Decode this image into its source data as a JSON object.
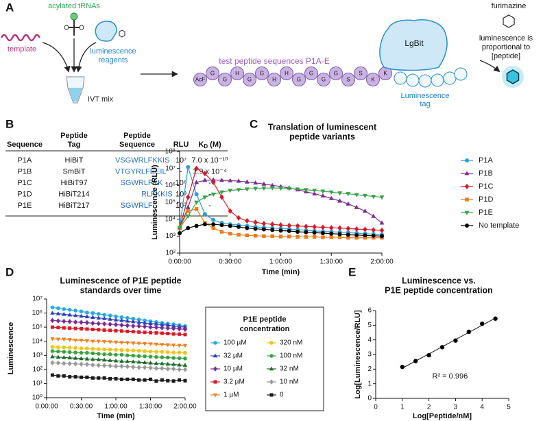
{
  "panel_a": {
    "label": "A",
    "trna_label": "acylated tRNAs",
    "template_label": "template",
    "reagents_label": [
      "luminescence",
      "reagents"
    ],
    "ivt_label": "IVT mix",
    "peptide_label": "test peptide sequences P1A-E",
    "beads": [
      "AcF",
      "G",
      "G",
      "H",
      "G",
      "G",
      "H",
      "H",
      "G",
      "G",
      "G",
      "G",
      "S",
      "S",
      "K",
      "K"
    ],
    "lgbit_label": "LgBit",
    "tag_label": [
      "Luminescence",
      "tag"
    ],
    "substrate_label": "furimazine",
    "readout_label": [
      "luminescence is",
      "proportional to",
      "[peptide]"
    ]
  },
  "panel_b": {
    "label": "B",
    "table": {
      "headers": [
        "Sequence",
        [
          "Peptide",
          "Tag"
        ],
        [
          "Peptide",
          "Sequence"
        ],
        "RLU",
        {
          "text": "K",
          "subscript": "D",
          "suffix": " (M)"
        }
      ],
      "rows": [
        [
          "P1A",
          "HiBiT",
          "VSGWRLFKKIS",
          "10⁷",
          "7.0 x 10⁻¹⁰"
        ],
        [
          "P1B",
          "SmBiT",
          "VTGYRLFEEIL",
          "-",
          "1.9 x 10⁻⁴"
        ],
        [
          "P1C",
          "HiBiT97",
          "SGWRLFKK",
          "10⁶",
          "-"
        ],
        [
          "P1D",
          "HiBiT214",
          "RLFKKIS",
          "10³",
          "-"
        ],
        [
          "P1E",
          "HiBiT217",
          "SGWRLF",
          "10³",
          "-"
        ]
      ]
    }
  },
  "chart_data": [
    {
      "panel_label": "C",
      "type": "line",
      "title": [
        "Translation of luminescent",
        "peptide variants"
      ],
      "x_label": "Time (min)",
      "y_label": "Luminescence (RLU)",
      "yscale": "log",
      "xlim": [
        0,
        120
      ],
      "xticks": [
        {
          "value": 0,
          "label": "0:00:00"
        },
        {
          "value": 30,
          "label": "0:30:00"
        },
        {
          "value": 60,
          "label": "1:00:00"
        },
        {
          "value": 90,
          "label": "1:30:00"
        },
        {
          "value": 120,
          "label": "2:00:00"
        }
      ],
      "ylim": [
        100,
        100000000
      ],
      "yticks": [
        {
          "value": 100,
          "label": "10²"
        },
        {
          "value": 1000,
          "label": "10³"
        },
        {
          "value": 10000,
          "label": "10⁴"
        },
        {
          "value": 100000,
          "label": "10⁵"
        },
        {
          "value": 1000000,
          "label": "10⁶"
        },
        {
          "value": 10000000,
          "label": "10⁷"
        },
        {
          "value": 100000000,
          "label": "10⁸"
        }
      ],
      "x": [
        0,
        5,
        10,
        15,
        20,
        25,
        30,
        35,
        40,
        45,
        50,
        55,
        60,
        65,
        70,
        75,
        80,
        85,
        90,
        95,
        100,
        105,
        110,
        115,
        120
      ],
      "series": [
        {
          "name": "P1A",
          "color": "#2a9fd8",
          "marker": "circle",
          "values": [
            3000,
            12000000,
            300000,
            20000,
            9000,
            6000,
            5000,
            4500,
            4000,
            3500,
            3200,
            3000,
            2800,
            2600,
            2400,
            2200,
            2000,
            1900,
            1800,
            1700,
            1600,
            1500,
            1400,
            1300,
            1200
          ]
        },
        {
          "name": "P1B",
          "color": "#7b2d8e",
          "marker": "triangle",
          "values": [
            3000,
            50000,
            1500000,
            2000000,
            2100000,
            2000000,
            1900000,
            1800000,
            1600000,
            1400000,
            1200000,
            1000000,
            850000,
            700000,
            550000,
            420000,
            320000,
            240000,
            170000,
            120000,
            80000,
            50000,
            30000,
            15000,
            6000
          ]
        },
        {
          "name": "P1C",
          "color": "#d7192a",
          "marker": "diamond",
          "values": [
            3000,
            200000,
            10000000,
            5000000,
            1500000,
            200000,
            30000,
            12000,
            8000,
            6500,
            5500,
            5000,
            4500,
            4200,
            4000,
            3700,
            3500,
            3300,
            3100,
            3000,
            2800,
            2600,
            2500,
            2300,
            2200
          ]
        },
        {
          "name": "P1D",
          "color": "#f07a18",
          "marker": "square",
          "values": [
            3000,
            30000,
            40000,
            6000,
            3000,
            1800,
            1400,
            1200,
            1100,
            1050,
            1000,
            1000,
            950,
            950,
            900,
            900,
            900,
            850,
            850,
            850,
            800,
            800,
            800,
            800,
            800
          ]
        },
        {
          "name": "P1E",
          "color": "#3aa04a",
          "marker": "triangle-down",
          "values": [
            3000,
            15000,
            100000,
            200000,
            300000,
            400000,
            500000,
            550000,
            600000,
            650000,
            680000,
            700000,
            680000,
            650000,
            600000,
            550000,
            500000,
            450000,
            400000,
            350000,
            320000,
            280000,
            250000,
            220000,
            200000
          ]
        },
        {
          "name": "No template",
          "color": "#000000",
          "marker": "circle",
          "values": [
            1500,
            3000,
            4000,
            5000,
            5000,
            4500,
            4000,
            3500,
            3000,
            2700,
            2500,
            2300,
            2100,
            2000,
            1800,
            1700,
            1600,
            1500,
            1400,
            1300,
            1200,
            1150,
            1100,
            1050,
            1000
          ]
        }
      ]
    },
    {
      "panel_label": "D",
      "type": "line",
      "title": [
        "Luminescence of P1E peptide",
        "standards over time"
      ],
      "x_label": "Time (min)",
      "y_label": "Luminescence",
      "yscale": "log",
      "legend_title": [
        "P1E peptide",
        "concentration"
      ],
      "xlim": [
        0,
        120
      ],
      "xticks": [
        {
          "value": 0,
          "label": "0:00:00"
        },
        {
          "value": 30,
          "label": "0:30:00"
        },
        {
          "value": 60,
          "label": "1:00:00"
        },
        {
          "value": 90,
          "label": "1:30:00"
        },
        {
          "value": 120,
          "label": "2:00:00"
        }
      ],
      "ylim": [
        1,
        10000000
      ],
      "yticks": [
        {
          "value": 1,
          "label": "10⁰"
        },
        {
          "value": 10,
          "label": "10¹"
        },
        {
          "value": 100,
          "label": "10²"
        },
        {
          "value": 1000,
          "label": "10³"
        },
        {
          "value": 10000,
          "label": "10⁴"
        },
        {
          "value": 100000,
          "label": "10⁵"
        },
        {
          "value": 1000000,
          "label": "10⁶"
        },
        {
          "value": 10000000,
          "label": "10⁷"
        }
      ],
      "x": [
        5,
        10,
        15,
        20,
        25,
        30,
        35,
        40,
        45,
        50,
        55,
        60,
        65,
        70,
        75,
        80,
        85,
        90,
        95,
        100,
        105,
        110,
        115,
        120
      ],
      "series": [
        {
          "name": "100 µM",
          "color": "#29a9e1",
          "marker": "circle",
          "values": [
            2500000,
            2200000,
            1900000,
            1700000,
            1500000,
            1300000,
            1100000,
            990000,
            870000,
            760000,
            670000,
            580000,
            510000,
            450000,
            390000,
            350000,
            300000,
            260000,
            230000,
            200000,
            180000,
            160000,
            140000,
            120000
          ]
        },
        {
          "name": "32 µM",
          "color": "#2b3fbd",
          "marker": "triangle",
          "values": [
            1000000,
            900000,
            820000,
            740000,
            670000,
            610000,
            550000,
            500000,
            450000,
            410000,
            370000,
            330000,
            300000,
            270000,
            250000,
            220000,
            200000,
            180000,
            170000,
            150000,
            140000,
            120000,
            110000,
            100000
          ]
        },
        {
          "name": "10 µM",
          "color": "#7a2a94",
          "marker": "diamond",
          "values": [
            300000,
            280000,
            260000,
            250000,
            230000,
            220000,
            210000,
            190000,
            180000,
            170000,
            160000,
            150000,
            140000,
            130000,
            120000,
            120000,
            110000,
            100000,
            96000,
            90000,
            85000,
            80000,
            75000,
            70000
          ]
        },
        {
          "name": "3.2 µM",
          "color": "#d91a28",
          "marker": "square",
          "values": [
            100000,
            95000,
            90000,
            85000,
            81000,
            77000,
            73000,
            69000,
            66000,
            62000,
            59000,
            56000,
            53000,
            50000,
            48000,
            45000,
            43000,
            41000,
            39000,
            37000,
            35000,
            33000,
            32000,
            30000
          ]
        },
        {
          "name": "1 µM",
          "color": "#f57f20",
          "marker": "triangle-down",
          "values": [
            15000,
            14000,
            14000,
            13000,
            12000,
            12000,
            11000,
            10000,
            10000,
            9500,
            9100,
            8700,
            8200,
            7900,
            7500,
            7100,
            6800,
            6500,
            6200,
            5900,
            5600,
            5300,
            5100,
            5000
          ]
        },
        {
          "name": "320 nM",
          "color": "#f5c218",
          "marker": "circle",
          "values": [
            4000,
            3800,
            3700,
            3500,
            3400,
            3200,
            3100,
            2900,
            2800,
            2700,
            2600,
            2500,
            2400,
            2300,
            2200,
            2100,
            2000,
            1900,
            1800,
            1800,
            1700,
            1600,
            1600,
            1500
          ]
        },
        {
          "name": "100 nM",
          "color": "#3aa33f",
          "marker": "circle",
          "values": [
            2000,
            1900,
            1800,
            1700,
            1600,
            1500,
            1500,
            1400,
            1300,
            1200,
            1200,
            1100,
            1100,
            1000,
            950,
            900,
            860,
            810,
            770,
            730,
            700,
            660,
            630,
            600
          ]
        },
        {
          "name": "32 nM",
          "color": "#1f6b2a",
          "marker": "triangle",
          "values": [
            800,
            750,
            710,
            670,
            630,
            590,
            560,
            530,
            500,
            470,
            440,
            410,
            390,
            370,
            350,
            330,
            310,
            290,
            270,
            260,
            240,
            230,
            210,
            200
          ]
        },
        {
          "name": "10 nM",
          "color": "#999999",
          "marker": "diamond",
          "values": [
            300,
            290,
            270,
            260,
            250,
            240,
            230,
            210,
            200,
            190,
            180,
            170,
            170,
            160,
            150,
            140,
            140,
            130,
            120,
            120,
            110,
            110,
            100,
            100
          ]
        },
        {
          "name": "0",
          "color": "#1a1a1a",
          "marker": "square",
          "values": [
            40,
            35,
            35,
            30,
            30,
            28,
            28,
            25,
            25,
            25,
            22,
            22,
            20,
            20,
            20,
            18,
            18,
            20,
            15,
            18,
            16,
            15,
            18,
            16
          ]
        }
      ]
    },
    {
      "panel_label": "E",
      "type": "scatter",
      "title": [
        "Luminescence vs.",
        "P1E peptide concentration"
      ],
      "x_label": "Log[Peptide/nM]",
      "y_label": "Log[Luminescence/RLU]",
      "annotation": "R² = 0.996",
      "trendline": true,
      "xlim": [
        0,
        5
      ],
      "xticks": [
        0,
        1,
        2,
        3,
        4,
        5
      ],
      "ylim": [
        0,
        6
      ],
      "yticks": [
        0,
        1,
        2,
        3,
        4,
        5,
        6
      ],
      "x": [
        1,
        1.5,
        2,
        2.5,
        3,
        3.5,
        4,
        4.5
      ],
      "series": [
        {
          "name": null,
          "color": "#000000",
          "marker": "circle",
          "values": [
            2.15,
            2.55,
            2.95,
            3.5,
            3.95,
            4.55,
            5.1,
            5.45
          ]
        }
      ]
    }
  ]
}
